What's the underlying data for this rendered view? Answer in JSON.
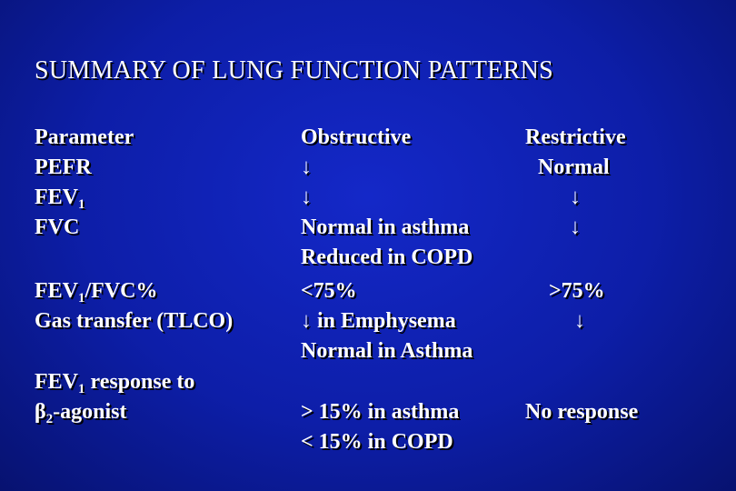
{
  "title": "SUMMARY OF LUNG FUNCTION PATTERNS",
  "headers": {
    "parameter": "Parameter",
    "obstructive": "Obstructive",
    "restrictive": "Restrictive"
  },
  "params": {
    "pefr": "PEFR",
    "fev_prefix": "FEV",
    "fev_sub": "1",
    "fvc": "FVC",
    "ratio_prefix": "FEV",
    "ratio_sub": "1",
    "ratio_suffix": "/FVC%",
    "gas_transfer": "Gas transfer (TLCO)",
    "response_prefix": "FEV",
    "response_sub": "1",
    "response_suffix": " response to",
    "beta_symbol": "β",
    "beta_sub": "2",
    "beta_suffix": "-agonist"
  },
  "obstructive": {
    "pefr": "↓",
    "fev1": "↓",
    "fvc_line1": "Normal in asthma",
    "fvc_line2": "Reduced in COPD",
    "ratio": "<75%",
    "gas_arrow": "↓",
    "gas_line1": " in Emphysema",
    "gas_line2": "Normal in Asthma",
    "response_line1": "> 15% in asthma",
    "response_line2": "< 15% in COPD"
  },
  "restrictive": {
    "pefr": "Normal",
    "fev1": "↓",
    "fvc": "↓",
    "ratio": ">75%",
    "gas": "↓",
    "response": "No response"
  }
}
